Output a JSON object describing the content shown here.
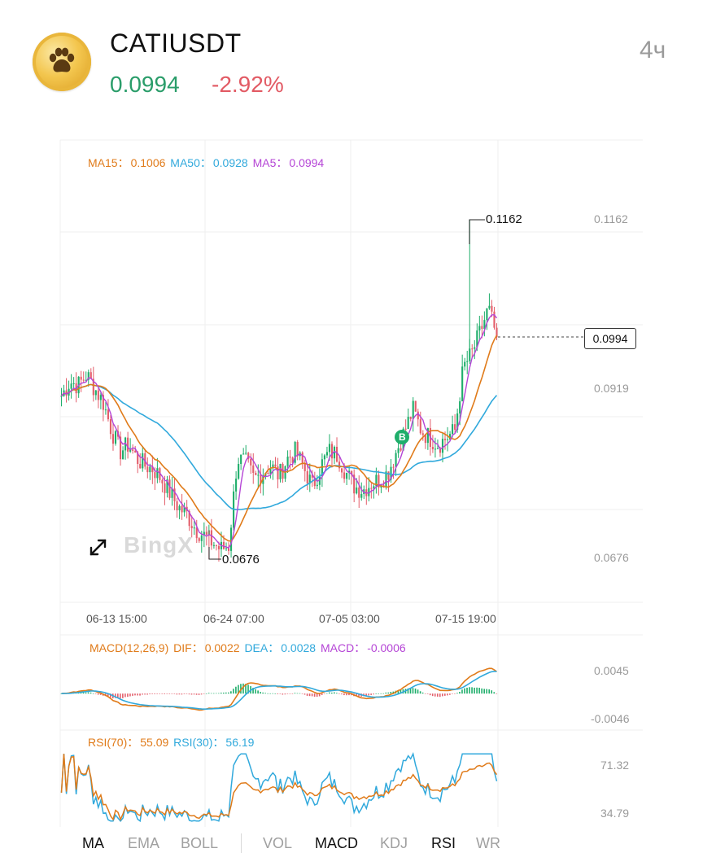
{
  "header": {
    "symbol": "CATIUSDT",
    "price": "0.0994",
    "change": "-2.92%",
    "interval": "4ч",
    "logo_icon": "paw-icon"
  },
  "main_chart": {
    "legend": {
      "ma15_label": "MA15：",
      "ma15_value": "0.1006",
      "ma50_label": "MA50：",
      "ma50_value": "0.0928",
      "ma5_label": "MA5：",
      "ma5_value": "0.0994"
    },
    "y_ticks": [
      "0.1162",
      "0.0919",
      "0.0676"
    ],
    "x_ticks": [
      "06-13 15:00",
      "06-24 07:00",
      "07-05 03:00",
      "07-15 19:00"
    ],
    "high_marker": "0.1162",
    "low_marker": "0.0676",
    "current_price_box": "0.0994",
    "buy_marker": "B",
    "watermark": "BingX",
    "expand_icon": "expand-icon"
  },
  "macd_panel": {
    "label": "MACD(12,26,9)",
    "dif_label": "DIF：",
    "dif_value": "0.0022",
    "dea_label": "DEA：",
    "dea_value": "0.0028",
    "macd_label": "MACD：",
    "macd_value": "-0.0006",
    "y_ticks": [
      "0.0045",
      "-0.0046"
    ]
  },
  "rsi_panel": {
    "rsi70_label": "RSI(70)：",
    "rsi70_value": "55.09",
    "rsi30_label": "RSI(30)：",
    "rsi30_value": "56.19",
    "y_ticks": [
      "71.32",
      "34.79"
    ]
  },
  "indicator_tabs": [
    {
      "label": "MA",
      "active": true
    },
    {
      "label": "EMA",
      "active": false
    },
    {
      "label": "BOLL",
      "active": false
    },
    {
      "label": "VOL",
      "active": false
    },
    {
      "label": "MACD",
      "active": true
    },
    {
      "label": "KDJ",
      "active": false
    },
    {
      "label": "RSI",
      "active": true
    },
    {
      "label": "WR",
      "active": false
    }
  ],
  "colors": {
    "up": "#2a9d6a",
    "down": "#e25a64",
    "ma15": "#e07b1a",
    "ma50": "#31a9dc",
    "ma5": "#b545d6",
    "candle_up": "#1fae6b",
    "candle_down": "#e35d6a"
  },
  "chart_data": {
    "type": "candlestick",
    "ylim": [
      0.0676,
      0.1162
    ],
    "high": 0.1162,
    "low": 0.0676,
    "last": 0.0994,
    "x_ticks": [
      "06-13 15:00",
      "06-24 07:00",
      "07-05 03:00",
      "07-15 19:00"
    ],
    "close_path": [
      0.091,
      0.093,
      0.0925,
      0.094,
      0.092,
      0.09,
      0.086,
      0.083,
      0.084,
      0.082,
      0.081,
      0.0805,
      0.079,
      0.077,
      0.075,
      0.074,
      0.072,
      0.071,
      0.07,
      0.069,
      0.0695,
      0.082,
      0.0815,
      0.079,
      0.08,
      0.081,
      0.0795,
      0.082,
      0.083,
      0.0805,
      0.078,
      0.081,
      0.083,
      0.0825,
      0.08,
      0.078,
      0.0775,
      0.0785,
      0.079,
      0.08,
      0.083,
      0.086,
      0.089,
      0.086,
      0.085,
      0.084,
      0.085,
      0.086,
      0.095,
      0.097,
      0.1,
      0.1035,
      0.0994
    ],
    "series": [
      {
        "name": "MA15",
        "last": 0.1006
      },
      {
        "name": "MA50",
        "last": 0.0928
      },
      {
        "name": "MA5",
        "last": 0.0994
      }
    ],
    "macd": {
      "dif": 0.0022,
      "dea": 0.0028,
      "macd": -0.0006,
      "ylim": [
        -0.0046,
        0.0045
      ]
    },
    "rsi": {
      "rsi70": 55.09,
      "rsi30": 56.19,
      "ylim": [
        34.79,
        71.32
      ]
    }
  }
}
